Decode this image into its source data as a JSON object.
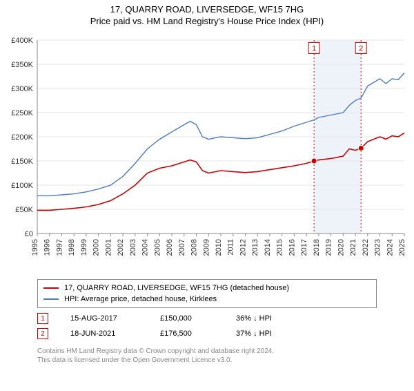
{
  "title": "17, QUARRY ROAD, LIVERSEDGE, WF15 7HG",
  "subtitle": "Price paid vs. HM Land Registry's House Price Index (HPI)",
  "chart": {
    "type": "line",
    "background_color": "#ffffff",
    "grid_color": "#e6e6e6",
    "axis_color": "#888888",
    "ylim": [
      0,
      400000
    ],
    "ytick_step": 50000,
    "yticks": [
      "£0",
      "£50K",
      "£100K",
      "£150K",
      "£200K",
      "£250K",
      "£300K",
      "£350K",
      "£400K"
    ],
    "x_years": [
      1995,
      1996,
      1997,
      1998,
      1999,
      2000,
      2001,
      2002,
      2003,
      2004,
      2005,
      2006,
      2007,
      2008,
      2009,
      2010,
      2011,
      2012,
      2013,
      2014,
      2015,
      2016,
      2017,
      2018,
      2019,
      2020,
      2021,
      2022,
      2023,
      2024,
      2025
    ],
    "highlight_band": {
      "start_year": 2017.62,
      "end_year": 2021.46,
      "fill": "#eef3fa"
    },
    "series": [
      {
        "name": "property",
        "color": "#cc0000",
        "width": 1.6,
        "legend": "17, QUARRY ROAD, LIVERSEDGE, WF15 7HG (detached house)",
        "points": [
          [
            1995,
            48000
          ],
          [
            1996,
            48000
          ],
          [
            1997,
            50000
          ],
          [
            1998,
            52000
          ],
          [
            1999,
            55000
          ],
          [
            2000,
            60000
          ],
          [
            2001,
            68000
          ],
          [
            2002,
            82000
          ],
          [
            2003,
            100000
          ],
          [
            2004,
            125000
          ],
          [
            2005,
            135000
          ],
          [
            2006,
            140000
          ],
          [
            2007,
            148000
          ],
          [
            2007.5,
            152000
          ],
          [
            2008,
            148000
          ],
          [
            2008.5,
            130000
          ],
          [
            2009,
            125000
          ],
          [
            2010,
            130000
          ],
          [
            2011,
            128000
          ],
          [
            2012,
            126000
          ],
          [
            2013,
            128000
          ],
          [
            2014,
            132000
          ],
          [
            2015,
            136000
          ],
          [
            2016,
            140000
          ],
          [
            2017,
            145000
          ],
          [
            2017.62,
            150000
          ],
          [
            2018,
            152000
          ],
          [
            2019,
            155000
          ],
          [
            2020,
            160000
          ],
          [
            2020.5,
            175000
          ],
          [
            2021,
            172000
          ],
          [
            2021.46,
            176500
          ],
          [
            2022,
            190000
          ],
          [
            2023,
            200000
          ],
          [
            2023.5,
            195000
          ],
          [
            2024,
            202000
          ],
          [
            2024.5,
            200000
          ],
          [
            2025,
            208000
          ]
        ]
      },
      {
        "name": "hpi",
        "color": "#4a7bc8",
        "width": 1.4,
        "legend": "HPI: Average price, detached house, Kirklees",
        "points": [
          [
            1995,
            78000
          ],
          [
            1996,
            78000
          ],
          [
            1997,
            80000
          ],
          [
            1998,
            82000
          ],
          [
            1999,
            86000
          ],
          [
            2000,
            92000
          ],
          [
            2001,
            100000
          ],
          [
            2002,
            118000
          ],
          [
            2003,
            145000
          ],
          [
            2004,
            175000
          ],
          [
            2005,
            195000
          ],
          [
            2006,
            210000
          ],
          [
            2007,
            225000
          ],
          [
            2007.5,
            232000
          ],
          [
            2008,
            225000
          ],
          [
            2008.5,
            200000
          ],
          [
            2009,
            195000
          ],
          [
            2010,
            200000
          ],
          [
            2011,
            198000
          ],
          [
            2012,
            196000
          ],
          [
            2013,
            198000
          ],
          [
            2014,
            205000
          ],
          [
            2015,
            212000
          ],
          [
            2016,
            222000
          ],
          [
            2017,
            230000
          ],
          [
            2017.62,
            235000
          ],
          [
            2018,
            240000
          ],
          [
            2019,
            245000
          ],
          [
            2020,
            250000
          ],
          [
            2020.5,
            265000
          ],
          [
            2021,
            275000
          ],
          [
            2021.46,
            280000
          ],
          [
            2022,
            305000
          ],
          [
            2023,
            320000
          ],
          [
            2023.5,
            310000
          ],
          [
            2024,
            320000
          ],
          [
            2024.5,
            318000
          ],
          [
            2025,
            332000
          ]
        ]
      }
    ],
    "markers": [
      {
        "num": "1",
        "year": 2017.62,
        "price": 150000,
        "label_price": 398000,
        "color": "#cc0000"
      },
      {
        "num": "2",
        "year": 2021.46,
        "price": 176500,
        "label_price": 398000,
        "color": "#cc0000"
      }
    ]
  },
  "sales": [
    {
      "num": "1",
      "date": "15-AUG-2017",
      "price": "£150,000",
      "pct": "36% ↓ HPI",
      "marker_color": "#cc0000"
    },
    {
      "num": "2",
      "date": "18-JUN-2021",
      "price": "£176,500",
      "pct": "37% ↓ HPI",
      "marker_color": "#cc0000"
    }
  ],
  "footer": {
    "line1": "Contains HM Land Registry data © Crown copyright and database right 2024.",
    "line2": "This data is licensed under the Open Government Licence v3.0."
  }
}
